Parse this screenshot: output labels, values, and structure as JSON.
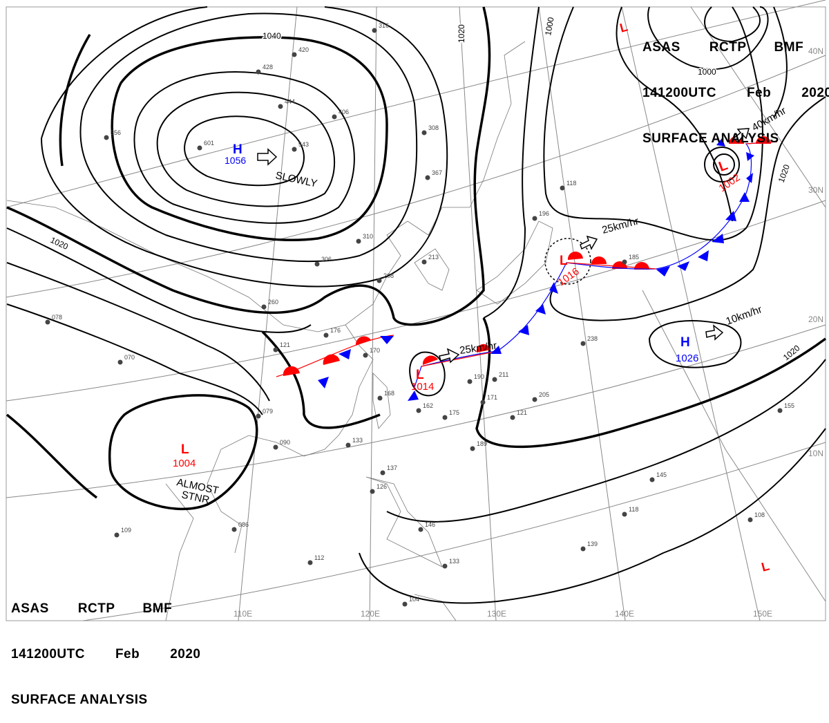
{
  "header": {
    "line1": [
      "ASAS",
      "RCTP",
      "BMF"
    ],
    "line2": [
      "141200UTC",
      "Feb",
      "2020"
    ],
    "line3": "SURFACE ANALYSIS"
  },
  "latitude_labels": [
    "40N",
    "30N",
    "20N",
    "10N"
  ],
  "longitude_labels": [
    "110E",
    "120E",
    "130E",
    "140E",
    "150E"
  ],
  "isobar_labels": [
    "1040",
    "1020",
    "1000",
    "1000",
    "1020",
    "1020",
    "1020"
  ],
  "pressure_centers": [
    {
      "type": "H",
      "value": "1056",
      "motion": "SLOWLY",
      "color": "#0000ff"
    },
    {
      "type": "L",
      "value": "1002",
      "motion": "40km/hr",
      "color": "#ff0000"
    },
    {
      "type": "L",
      "value": "1016",
      "motion": "25km/hr",
      "color": "#ff0000"
    },
    {
      "type": "L",
      "value": "1014",
      "motion": "25km/hr",
      "color": "#ff0000"
    },
    {
      "type": "H",
      "value": "1026",
      "motion": "10km/hr",
      "color": "#0000ff"
    },
    {
      "type": "L",
      "value": "1004",
      "motion": "ALMOST",
      "motion2": "STNR",
      "color": "#ff0000"
    },
    {
      "type": "L",
      "value": "",
      "color": "#ff0000"
    },
    {
      "type": "L",
      "value": "",
      "color": "#ff0000"
    }
  ],
  "stations": [
    "316",
    "420",
    "428",
    "444",
    "406",
    "601",
    "543",
    "308",
    "367",
    "356",
    "306",
    "310",
    "260",
    "208",
    "213",
    "176",
    "121",
    "170",
    "168",
    "162",
    "175",
    "190",
    "211",
    "171",
    "121",
    "238",
    "205",
    "185",
    "118",
    "196",
    "079",
    "090",
    "133",
    "137",
    "126",
    "112",
    "146",
    "133",
    "104",
    "145",
    "118",
    "139",
    "108",
    "155",
    "070",
    "078",
    "086",
    "109",
    "189"
  ],
  "colors": {
    "warm_front": "#ff0000",
    "cold_front": "#0000ff",
    "isobar": "#000000",
    "graticule": "#888888"
  }
}
